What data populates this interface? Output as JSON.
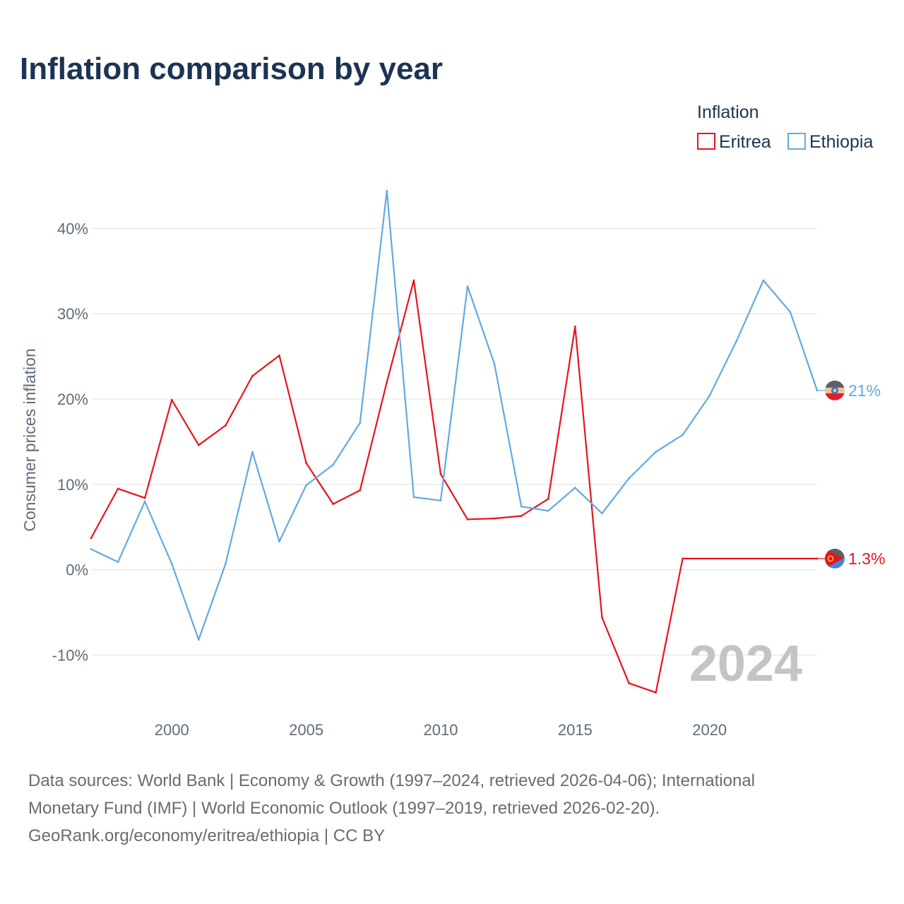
{
  "page": {
    "title": "Inflation comparison by year",
    "source_lines": [
      "Data sources: World Bank | Economy & Growth (1997–2024, retrieved 2026-04-06); International",
      "Monetary Fund (IMF) | World Economic Outlook (1997–2019, retrieved 2026-02-20).",
      "GeoRank.org/economy/eritrea/ethiopia | CC BY"
    ]
  },
  "chart_data": {
    "type": "line",
    "title": "Inflation comparison by year",
    "xlabel": "",
    "ylabel": "Consumer prices inflation",
    "legend_title": "Inflation",
    "legend_position": "top-right",
    "grid": true,
    "xlim": [
      1997,
      2024
    ],
    "ylim": [
      -16.5,
      44
    ],
    "x_ticks": [
      2000,
      2005,
      2010,
      2015,
      2020
    ],
    "y_ticks": [
      {
        "value": 40,
        "label": "40%"
      },
      {
        "value": 30,
        "label": "30%"
      },
      {
        "value": 20,
        "label": "20%"
      },
      {
        "value": 10,
        "label": "10%"
      },
      {
        "value": 0,
        "label": "0%"
      },
      {
        "value": -10,
        "label": "-10%"
      }
    ],
    "current_year": "2024",
    "series": [
      {
        "name": "Eritrea",
        "color": "#e8141c",
        "end_label": "1.3%",
        "flag_icon": "eritrea-flag-icon",
        "points": [
          {
            "x": 1997,
            "y": 3.7
          },
          {
            "x": 1998,
            "y": 9.5
          },
          {
            "x": 1999,
            "y": 8.4
          },
          {
            "x": 2000,
            "y": 19.9
          },
          {
            "x": 2001,
            "y": 14.6
          },
          {
            "x": 2002,
            "y": 16.9
          },
          {
            "x": 2003,
            "y": 22.7
          },
          {
            "x": 2004,
            "y": 25.1
          },
          {
            "x": 2005,
            "y": 12.5
          },
          {
            "x": 2006,
            "y": 7.7
          },
          {
            "x": 2007,
            "y": 9.3
          },
          {
            "x": 2008,
            "y": 22.0
          },
          {
            "x": 2009,
            "y": 33.9
          },
          {
            "x": 2010,
            "y": 11.2
          },
          {
            "x": 2011,
            "y": 5.9
          },
          {
            "x": 2012,
            "y": 6.0
          },
          {
            "x": 2013,
            "y": 6.3
          },
          {
            "x": 2014,
            "y": 8.3
          },
          {
            "x": 2015,
            "y": 28.5
          },
          {
            "x": 2016,
            "y": -5.6
          },
          {
            "x": 2017,
            "y": -13.3
          },
          {
            "x": 2018,
            "y": -14.4
          },
          {
            "x": 2019,
            "y": 1.3
          },
          {
            "x": 2024,
            "y": 1.3
          }
        ]
      },
      {
        "name": "Ethiopia",
        "color": "#62a9e3",
        "end_label": "21%",
        "flag_icon": "ethiopia-flag-icon",
        "points": [
          {
            "x": 1997,
            "y": 2.4
          },
          {
            "x": 1998,
            "y": 0.9
          },
          {
            "x": 1999,
            "y": 8.0
          },
          {
            "x": 2000,
            "y": 0.7
          },
          {
            "x": 2001,
            "y": -8.2
          },
          {
            "x": 2002,
            "y": 0.7
          },
          {
            "x": 2003,
            "y": 13.8
          },
          {
            "x": 2004,
            "y": 3.3
          },
          {
            "x": 2005,
            "y": 9.9
          },
          {
            "x": 2006,
            "y": 12.3
          },
          {
            "x": 2007,
            "y": 17.2
          },
          {
            "x": 2008,
            "y": 44.4
          },
          {
            "x": 2009,
            "y": 8.5
          },
          {
            "x": 2010,
            "y": 8.1
          },
          {
            "x": 2011,
            "y": 33.2
          },
          {
            "x": 2012,
            "y": 24.1
          },
          {
            "x": 2013,
            "y": 7.4
          },
          {
            "x": 2014,
            "y": 6.9
          },
          {
            "x": 2015,
            "y": 9.6
          },
          {
            "x": 2016,
            "y": 6.6
          },
          {
            "x": 2017,
            "y": 10.7
          },
          {
            "x": 2018,
            "y": 13.8
          },
          {
            "x": 2019,
            "y": 15.8
          },
          {
            "x": 2020,
            "y": 20.4
          },
          {
            "x": 2021,
            "y": 26.8
          },
          {
            "x": 2022,
            "y": 33.9
          },
          {
            "x": 2023,
            "y": 30.2
          },
          {
            "x": 2024,
            "y": 21.0
          }
        ]
      }
    ]
  }
}
